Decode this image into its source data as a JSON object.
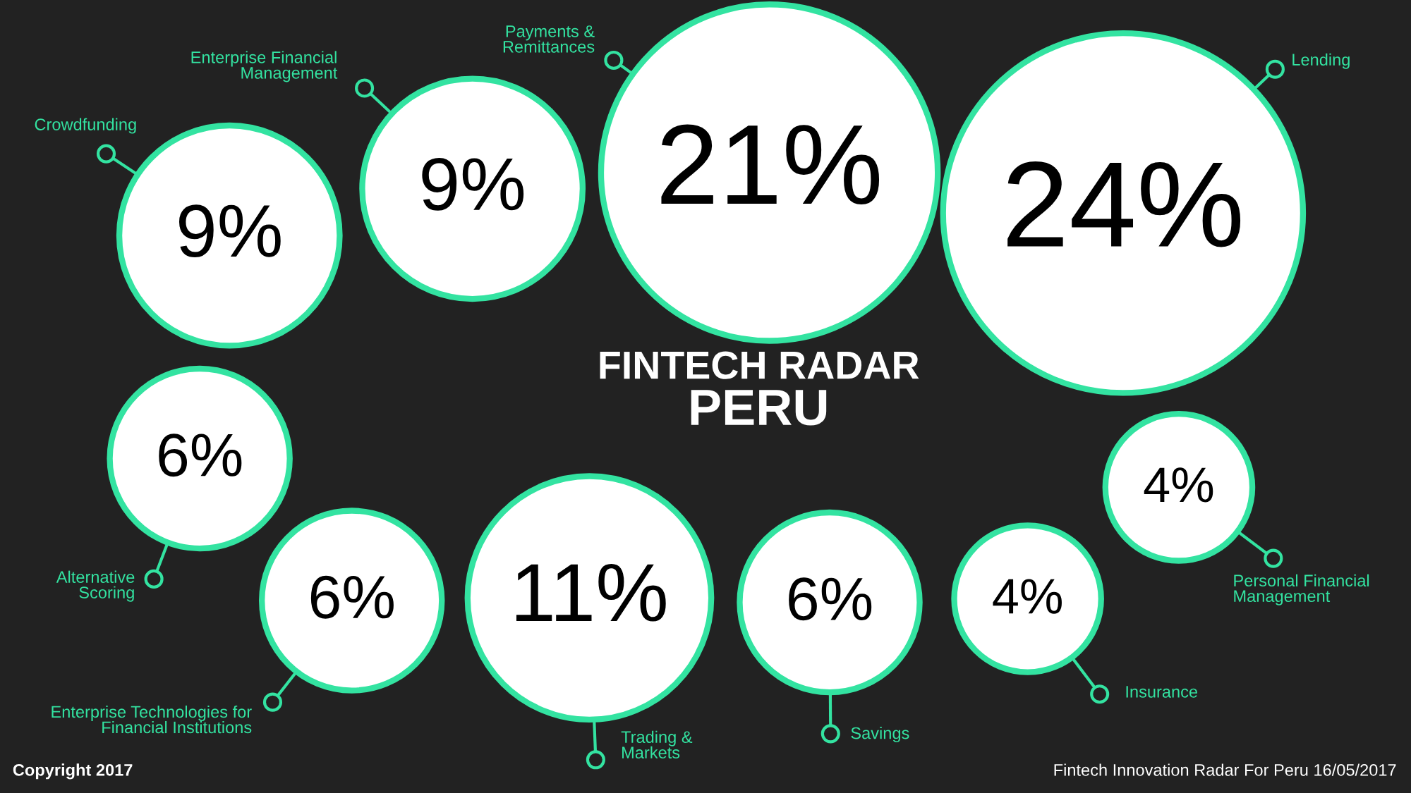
{
  "chart_data": {
    "type": "other",
    "title": "FINTECH RADAR",
    "subtitle": "PERU",
    "categories": [
      "Crowdfunding",
      "Enterprise Financial\nManagement",
      "Payments &\nRemittances",
      "Lending",
      "Alternative\nScoring",
      "Enterprise Technologies for\nFinancial Institutions",
      "Trading &\nMarkets",
      "Savings",
      "Insurance",
      "Personal Financial\nManagement"
    ],
    "values": [
      9,
      9,
      21,
      24,
      6,
      6,
      11,
      6,
      4,
      4
    ],
    "value_labels": [
      "9%",
      "9%",
      "21%",
      "24%",
      "6%",
      "6%",
      "11%",
      "6%",
      "4%",
      "4%"
    ],
    "color": "#33e3a1",
    "annotations": [
      "Copyright 2017",
      "Fintech Innovation Radar For Peru 16/05/2017"
    ]
  }
}
